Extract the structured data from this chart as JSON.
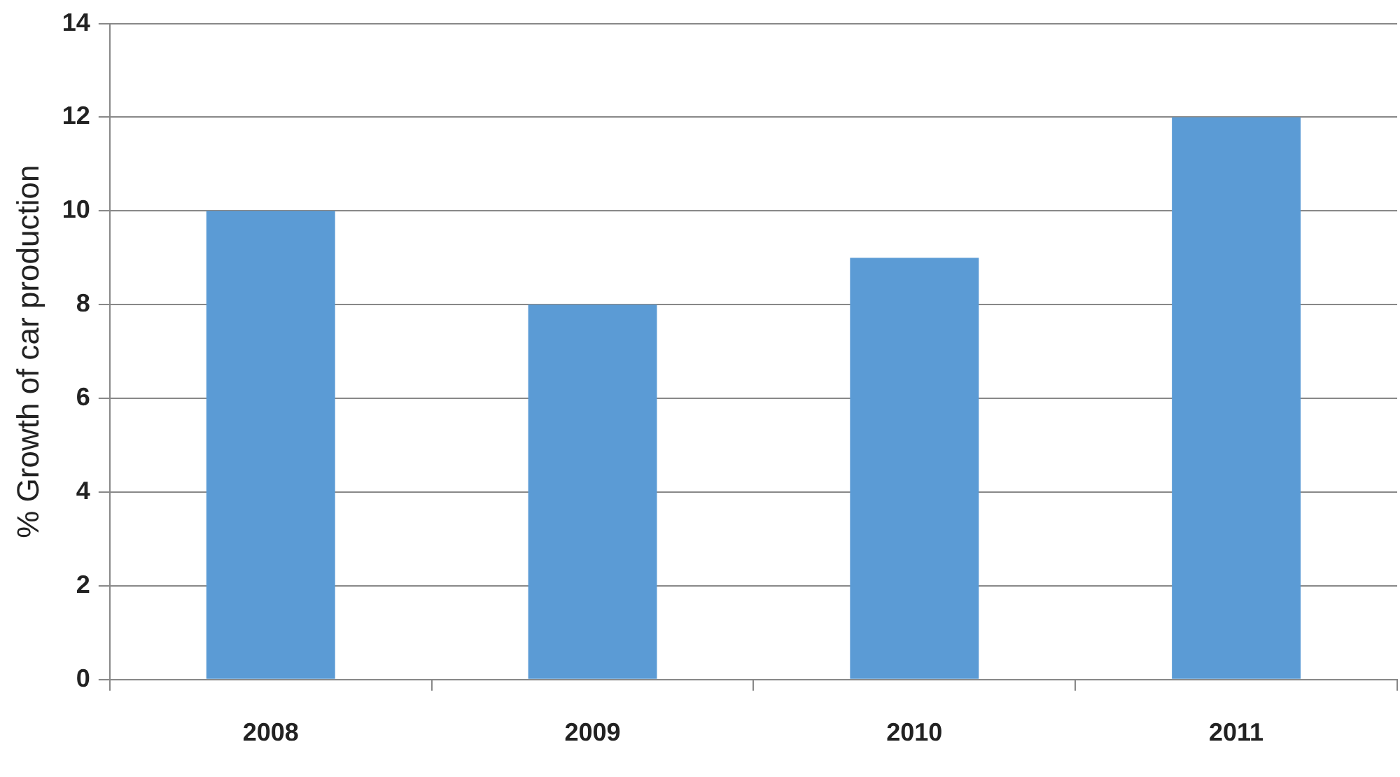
{
  "chart_data": {
    "type": "bar",
    "ylabel": "% Growth of car production",
    "categories": [
      "2008",
      "2009",
      "2010",
      "2011"
    ],
    "values": [
      10,
      8,
      9,
      12
    ],
    "color": "#5b9bd5",
    "ylim": [
      0,
      14
    ],
    "yticks": [
      0,
      2,
      4,
      6,
      8,
      10,
      12,
      14
    ],
    "grid": "y",
    "legend": false
  }
}
